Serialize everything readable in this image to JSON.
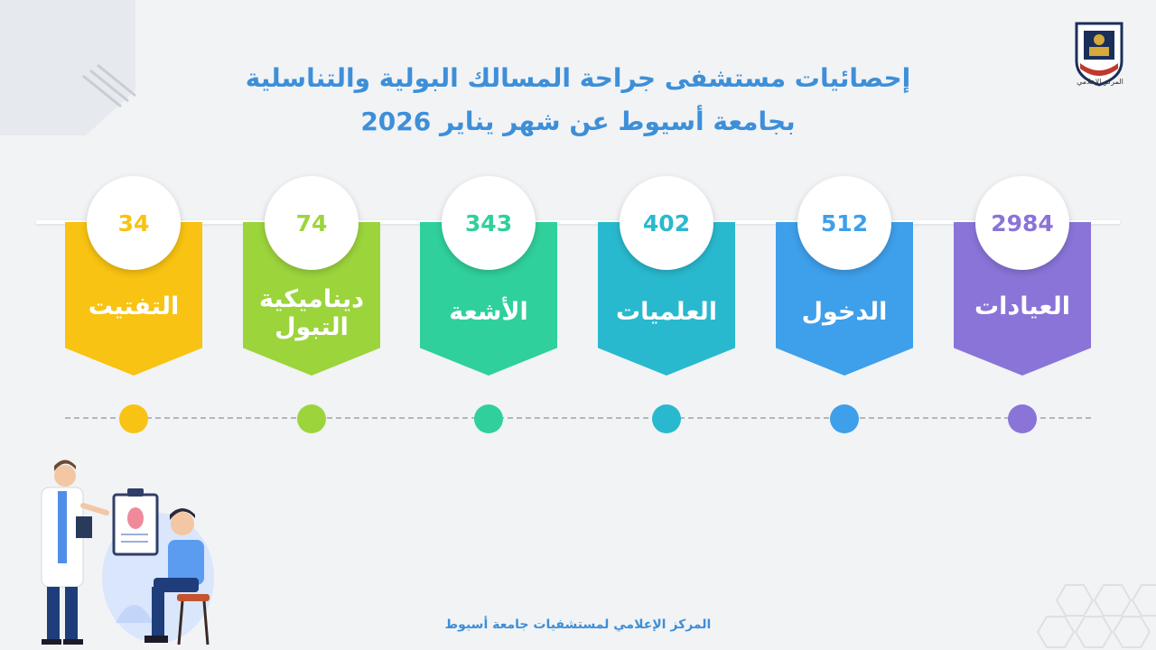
{
  "title": {
    "line1": "إحصائيات مستشفى جراحة المسالك البولية والتناسلية",
    "line2": "بجامعة أسيوط عن شهر يناير 2026"
  },
  "logo": {
    "caption": "المركز الإعلامي"
  },
  "colors": {
    "title": "#3d8fd8",
    "purple": "#8a74d8",
    "blue": "#3e9fea",
    "sky": "#29b9ce",
    "teal": "#2fd09c",
    "green": "#9cd43c",
    "yellow": "#f8c312"
  },
  "stats": [
    {
      "label": "العيادات",
      "value": "2984"
    },
    {
      "label": "الدخول",
      "value": "512"
    },
    {
      "label": "العلميات",
      "value": "402"
    },
    {
      "label": "الأشعة",
      "value": "343"
    },
    {
      "label": "ديناميكية التبول",
      "value": "74"
    },
    {
      "label": "التفتيت",
      "value": "34"
    }
  ],
  "footer": "المركز الإعلامي لمستشفيات جامعة أسيوط"
}
